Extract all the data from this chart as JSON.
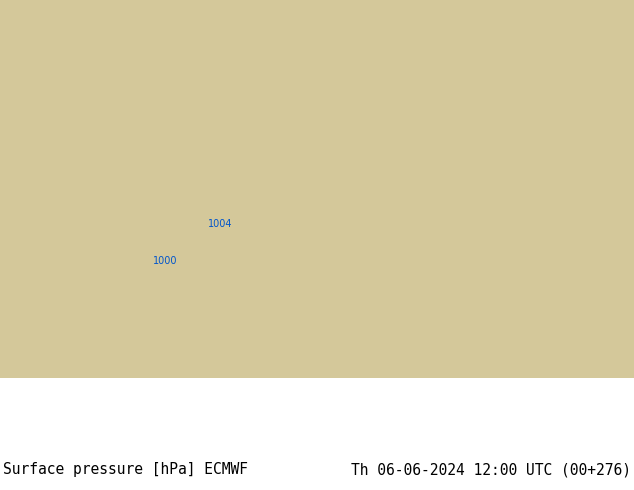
{
  "title_left": "Surface pressure [hPa] ECMWF",
  "title_right": "Th 06-06-2024 12:00 UTC (00+276)",
  "text_color": "#000000",
  "caption_fontsize": 10.5,
  "fig_width": 6.34,
  "fig_height": 4.9,
  "dpi": 100,
  "ocean_color": "#b0cfe8",
  "land_base": "#c8c89a",
  "isobar_blue": "#0055cc",
  "isobar_black": "#000000",
  "isobar_red": "#dd0000",
  "label_fontsize": 6.5,
  "lw": 0.85,
  "map_extent": [
    40,
    155,
    5,
    65
  ],
  "caption_bg": "#ffffff"
}
